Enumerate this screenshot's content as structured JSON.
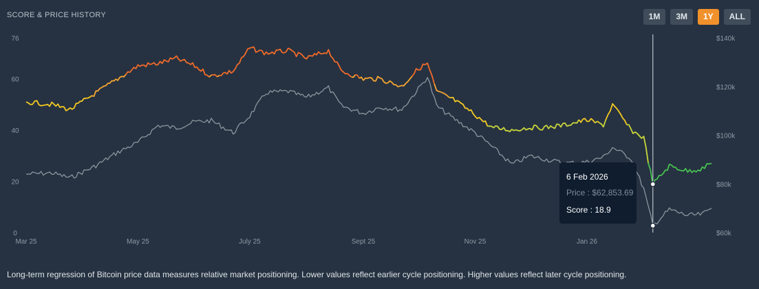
{
  "header": {
    "title": "SCORE & PRICE HISTORY"
  },
  "range_buttons": [
    {
      "label": "1M",
      "active": false
    },
    {
      "label": "3M",
      "active": false
    },
    {
      "label": "1Y",
      "active": true
    },
    {
      "label": "ALL",
      "active": false
    }
  ],
  "tooltip": {
    "date": "6 Feb 2026",
    "price_label": "Price :",
    "price_value": "$62,853.69",
    "score_label": "Score :",
    "score_value": "18.9"
  },
  "footnote": "Long-term regression of Bitcoin price data measures relative market positioning. Lower values reflect earlier cycle positioning. Higher values reflect later cycle positioning.",
  "colors": {
    "background": "#263241",
    "price_line": "#8d969f",
    "score_high": "#f06a2a",
    "score_upper": "#f7a532",
    "score_mid": "#f4c823",
    "score_low": "#c9d63a",
    "score_lowest": "#47c150",
    "active_button": "#f0912c"
  },
  "chart_data": {
    "type": "line",
    "title": "SCORE & PRICE HISTORY",
    "x_tick_labels": [
      "Mar 25",
      "May 25",
      "July 25",
      "Sept 25",
      "Nov 25",
      "Jan 26"
    ],
    "left_axis": {
      "label": "Score",
      "ticks": [
        "0",
        "20",
        "40",
        "60",
        "76"
      ],
      "range": [
        0,
        76
      ]
    },
    "right_axis": {
      "label": "Price",
      "ticks": [
        "$60k",
        "$80k",
        "$100k",
        "$120k",
        "$140k"
      ],
      "range": [
        60000,
        140000
      ]
    },
    "grid": false,
    "crosshair_date": "6 Feb 2026",
    "series": [
      {
        "name": "Score",
        "axis": "left",
        "dates": [
          "2025-03-01",
          "2025-03-15",
          "2025-03-25",
          "2025-04-07",
          "2025-04-20",
          "2025-05-01",
          "2025-05-12",
          "2025-05-22",
          "2025-06-01",
          "2025-06-10",
          "2025-06-22",
          "2025-07-01",
          "2025-07-10",
          "2025-07-22",
          "2025-08-01",
          "2025-08-13",
          "2025-08-20",
          "2025-09-01",
          "2025-09-10",
          "2025-09-22",
          "2025-10-01",
          "2025-10-06",
          "2025-10-11",
          "2025-10-20",
          "2025-11-01",
          "2025-11-10",
          "2025-11-21",
          "2025-12-01",
          "2025-12-10",
          "2025-12-20",
          "2026-01-01",
          "2026-01-10",
          "2026-01-15",
          "2026-01-25",
          "2026-02-01",
          "2026-02-06",
          "2026-02-15",
          "2026-02-25",
          "2026-03-05",
          "2026-03-10"
        ],
        "values": [
          51,
          50,
          48,
          54,
          60,
          65,
          66,
          68,
          65,
          61,
          63,
          72,
          70,
          71,
          68,
          71,
          63,
          60,
          60,
          57,
          64,
          66,
          55,
          52,
          46,
          41,
          40,
          41,
          41,
          42,
          44,
          42,
          50,
          40,
          37,
          18.9,
          26,
          24,
          25,
          27
        ]
      },
      {
        "name": "Price",
        "axis": "right",
        "dates": [
          "2025-03-01",
          "2025-03-15",
          "2025-03-25",
          "2025-04-07",
          "2025-04-20",
          "2025-05-01",
          "2025-05-12",
          "2025-05-22",
          "2025-06-01",
          "2025-06-10",
          "2025-06-22",
          "2025-07-01",
          "2025-07-10",
          "2025-07-22",
          "2025-08-01",
          "2025-08-13",
          "2025-08-20",
          "2025-09-01",
          "2025-09-10",
          "2025-09-22",
          "2025-10-01",
          "2025-10-06",
          "2025-10-11",
          "2025-10-20",
          "2025-11-01",
          "2025-11-10",
          "2025-11-21",
          "2025-12-01",
          "2025-12-10",
          "2025-12-20",
          "2026-01-01",
          "2026-01-10",
          "2026-01-15",
          "2026-01-25",
          "2026-02-01",
          "2026-02-06",
          "2026-02-15",
          "2026-02-25",
          "2026-03-05",
          "2026-03-10"
        ],
        "values": [
          84000,
          84500,
          82500,
          87000,
          93000,
          97000,
          104000,
          103000,
          105500,
          106000,
          101000,
          108000,
          117500,
          118000,
          115500,
          119500,
          112000,
          109000,
          111500,
          110500,
          119000,
          124000,
          112000,
          107000,
          101000,
          95500,
          88000,
          91500,
          90000,
          88500,
          89000,
          91000,
          95000,
          90500,
          78000,
          62853.69,
          69500,
          67000,
          67500,
          70000
        ]
      }
    ]
  }
}
